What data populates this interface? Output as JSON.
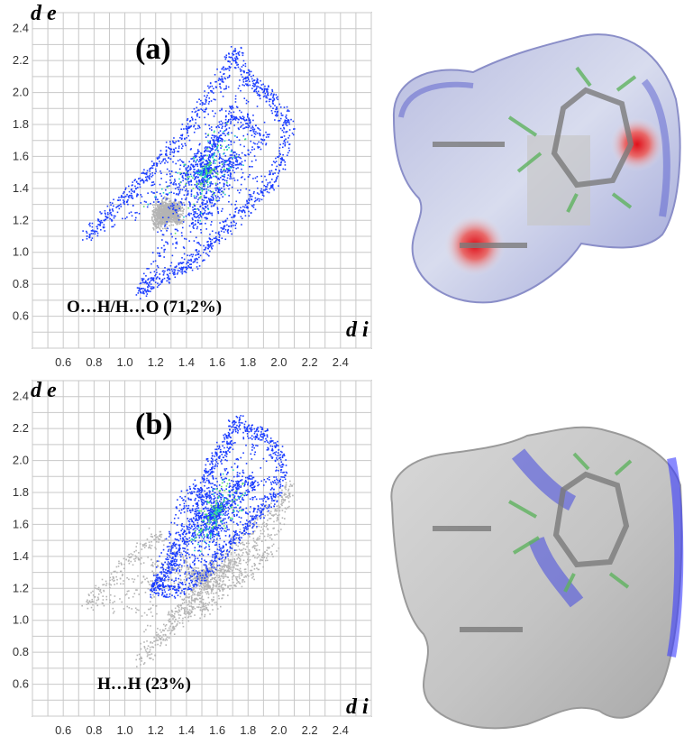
{
  "chart_data": [
    {
      "type": "scatter",
      "panel": "(a)",
      "contact_label": "O…H/H…O (71,2%)",
      "x_axis_title": "d i",
      "y_axis_title": "d e",
      "x_ticks": [
        "0.6",
        "0.8",
        "1.0",
        "1.2",
        "1.4",
        "1.6",
        "1.8",
        "2.0",
        "2.2",
        "2.4"
      ],
      "y_ticks": [
        "0.6",
        "0.8",
        "1.0",
        "1.2",
        "1.4",
        "1.6",
        "1.8",
        "2.0",
        "2.2",
        "2.4"
      ],
      "xlim": [
        0.4,
        2.6
      ],
      "ylim": [
        0.4,
        2.5
      ],
      "grid": true,
      "series": [
        {
          "kind": "background",
          "color": "#b4b4b4",
          "points": [
            [
              1.2,
              1.18
            ],
            [
              1.25,
              1.2
            ],
            [
              1.3,
              1.25
            ],
            [
              1.35,
              1.3
            ],
            [
              1.2,
              1.25
            ],
            [
              1.28,
              1.32
            ],
            [
              1.35,
              1.2
            ],
            [
              1.22,
              1.3
            ]
          ]
        },
        {
          "kind": "highlight",
          "color": "#1a3cff",
          "points": [
            [
              0.75,
              1.1
            ],
            [
              0.85,
              1.2
            ],
            [
              0.95,
              1.3
            ],
            [
              1.05,
              1.4
            ],
            [
              1.15,
              1.5
            ],
            [
              1.25,
              1.6
            ],
            [
              1.35,
              1.7
            ],
            [
              1.45,
              1.85
            ],
            [
              1.55,
              2.0
            ],
            [
              1.65,
              2.15
            ],
            [
              1.72,
              2.26
            ],
            [
              1.78,
              2.1
            ],
            [
              1.85,
              2.05
            ],
            [
              1.92,
              2.0
            ],
            [
              2.0,
              1.9
            ],
            [
              2.06,
              1.8
            ],
            [
              2.02,
              1.6
            ],
            [
              1.95,
              1.45
            ],
            [
              1.85,
              1.35
            ],
            [
              1.75,
              1.25
            ],
            [
              1.65,
              1.15
            ],
            [
              1.55,
              1.05
            ],
            [
              1.45,
              0.95
            ],
            [
              1.35,
              0.9
            ],
            [
              1.25,
              0.85
            ],
            [
              1.15,
              0.8
            ],
            [
              1.1,
              0.74
            ],
            [
              1.3,
              1.25
            ],
            [
              1.4,
              1.5
            ],
            [
              1.5,
              1.6
            ],
            [
              1.6,
              1.7
            ],
            [
              1.7,
              1.9
            ],
            [
              1.8,
              1.8
            ],
            [
              1.9,
              1.7
            ],
            [
              1.45,
              1.2
            ],
            [
              1.55,
              1.3
            ],
            [
              1.65,
              1.5
            ],
            [
              1.75,
              1.6
            ]
          ]
        }
      ]
    },
    {
      "type": "scatter",
      "panel": "(b)",
      "contact_label": "H…H (23%)",
      "x_axis_title": "d i",
      "y_axis_title": "d e",
      "x_ticks": [
        "0.6",
        "0.8",
        "1.0",
        "1.2",
        "1.4",
        "1.6",
        "1.8",
        "2.0",
        "2.2",
        "2.4"
      ],
      "y_ticks": [
        "0.6",
        "0.8",
        "1.0",
        "1.2",
        "1.4",
        "1.6",
        "1.8",
        "2.0",
        "2.2",
        "2.4"
      ],
      "xlim": [
        0.4,
        2.6
      ],
      "ylim": [
        0.4,
        2.5
      ],
      "grid": true,
      "series": [
        {
          "kind": "background",
          "color": "#b4b4b4",
          "points": [
            [
              0.75,
              1.1
            ],
            [
              0.9,
              1.25
            ],
            [
              1.05,
              1.4
            ],
            [
              1.2,
              1.55
            ],
            [
              1.1,
              0.75
            ],
            [
              1.25,
              0.9
            ],
            [
              1.4,
              1.05
            ],
            [
              1.55,
              1.2
            ],
            [
              1.7,
              1.35
            ],
            [
              1.85,
              1.5
            ],
            [
              2.0,
              1.7
            ],
            [
              2.06,
              1.85
            ],
            [
              1.95,
              1.45
            ],
            [
              1.8,
              1.3
            ],
            [
              1.65,
              1.2
            ],
            [
              1.5,
              1.05
            ]
          ]
        },
        {
          "kind": "highlight",
          "color": "#1a3cff",
          "points": [
            [
              1.18,
              1.18
            ],
            [
              1.22,
              1.25
            ],
            [
              1.28,
              1.35
            ],
            [
              1.32,
              1.45
            ],
            [
              1.38,
              1.55
            ],
            [
              1.45,
              1.65
            ],
            [
              1.5,
              1.8
            ],
            [
              1.55,
              1.95
            ],
            [
              1.6,
              2.05
            ],
            [
              1.68,
              2.15
            ],
            [
              1.72,
              2.26
            ],
            [
              1.8,
              2.18
            ],
            [
              1.9,
              2.17
            ],
            [
              1.98,
              2.08
            ],
            [
              2.02,
              1.95
            ],
            [
              1.98,
              1.8
            ],
            [
              1.9,
              1.7
            ],
            [
              1.8,
              1.6
            ],
            [
              1.7,
              1.5
            ],
            [
              1.6,
              1.4
            ],
            [
              1.5,
              1.3
            ],
            [
              1.4,
              1.22
            ],
            [
              1.3,
              1.18
            ],
            [
              1.2,
              1.2
            ],
            [
              1.35,
              1.7
            ],
            [
              1.45,
              1.85
            ],
            [
              1.55,
              1.5
            ],
            [
              1.65,
              1.7
            ],
            [
              1.75,
              1.9
            ],
            [
              1.85,
              1.85
            ]
          ]
        }
      ]
    }
  ],
  "surfaces": [
    {
      "panel": "(a)",
      "surface_color": "#c9cce6",
      "highlight_color": "#e0101a"
    },
    {
      "panel": "(b)",
      "surface_color": "#c6c6c6",
      "highlight_color": "#3a3cff"
    }
  ]
}
